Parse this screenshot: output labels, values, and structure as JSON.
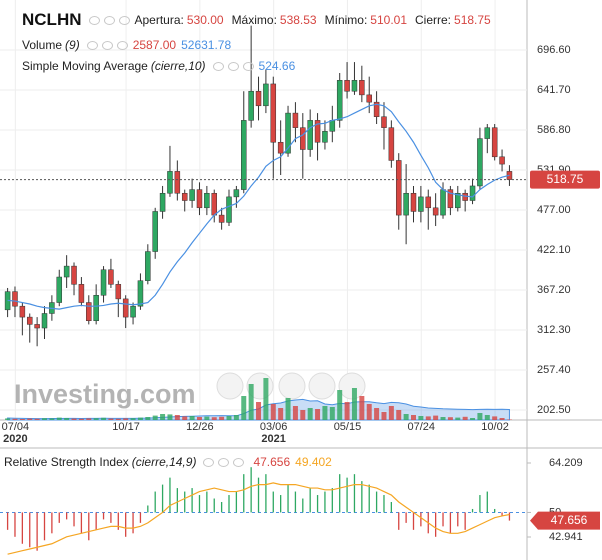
{
  "chart_data": [
    {
      "type": "candlestick",
      "title": "NCLHN",
      "ohlc_legend": [
        {
          "label": "Apertura:",
          "value": "530.00"
        },
        {
          "label": "Máximo:",
          "value": "538.53"
        },
        {
          "label": "Mínimo:",
          "value": "510.01"
        },
        {
          "label": "Cierre:",
          "value": "518.75"
        }
      ],
      "categories": [
        null,
        null,
        "07/04",
        null,
        null,
        null,
        null,
        null,
        null,
        null,
        null,
        null,
        null,
        null,
        null,
        null,
        null,
        "10/17",
        null,
        null,
        null,
        null,
        null,
        null,
        null,
        null,
        null,
        "12/26",
        null,
        null,
        null,
        null,
        null,
        null,
        null,
        null,
        null,
        "03/06",
        null,
        null,
        null,
        null,
        null,
        null,
        null,
        null,
        null,
        "05/15",
        null,
        null,
        null,
        null,
        null,
        null,
        null,
        null,
        null,
        "07/24",
        null,
        null,
        null,
        null,
        null,
        null,
        null,
        null,
        null,
        "10/02",
        null
      ],
      "x_sublabels": [
        null,
        null,
        "2020",
        null,
        null,
        null,
        null,
        null,
        null,
        null,
        null,
        null,
        null,
        null,
        null,
        null,
        null,
        null,
        null,
        null,
        null,
        null,
        null,
        null,
        null,
        null,
        null,
        null,
        null,
        null,
        null,
        null,
        null,
        null,
        null,
        null,
        null,
        "2021",
        null,
        null,
        null,
        null,
        null,
        null,
        null,
        null,
        null,
        null,
        null,
        null,
        null,
        null,
        null,
        null,
        null,
        null,
        null,
        null,
        null,
        null,
        null,
        null,
        null,
        null,
        null,
        null,
        null,
        null,
        null
      ],
      "open": [
        340,
        365,
        345,
        330,
        320,
        315,
        335,
        350,
        385,
        400,
        375,
        350,
        325,
        360,
        395,
        375,
        355,
        330,
        345,
        380,
        420,
        475,
        500,
        530,
        500,
        490,
        505,
        480,
        500,
        470,
        460,
        495,
        505,
        600,
        640,
        620,
        650,
        570,
        555,
        610,
        590,
        560,
        600,
        570,
        585,
        600,
        655,
        640,
        655,
        635,
        625,
        605,
        590,
        545,
        470,
        500,
        475,
        495,
        480,
        470,
        505,
        480,
        500,
        490,
        510,
        575,
        590,
        550,
        530
      ],
      "high": [
        370,
        372,
        350,
        335,
        330,
        345,
        360,
        395,
        415,
        405,
        385,
        360,
        375,
        400,
        410,
        380,
        360,
        350,
        390,
        430,
        480,
        510,
        565,
        545,
        505,
        520,
        515,
        510,
        505,
        480,
        505,
        510,
        640,
        730,
        660,
        670,
        660,
        600,
        620,
        625,
        610,
        615,
        610,
        600,
        620,
        665,
        680,
        680,
        675,
        660,
        640,
        625,
        600,
        555,
        540,
        510,
        510,
        505,
        500,
        515,
        510,
        510,
        505,
        520,
        590,
        595,
        595,
        560,
        538.53
      ],
      "low": [
        330,
        330,
        305,
        295,
        290,
        300,
        325,
        345,
        370,
        360,
        345,
        320,
        320,
        350,
        370,
        330,
        315,
        320,
        340,
        375,
        410,
        465,
        495,
        490,
        475,
        480,
        470,
        470,
        460,
        450,
        455,
        480,
        500,
        590,
        600,
        610,
        520,
        525,
        550,
        570,
        520,
        550,
        545,
        560,
        570,
        590,
        630,
        635,
        625,
        610,
        595,
        560,
        535,
        450,
        430,
        460,
        460,
        450,
        455,
        465,
        470,
        475,
        475,
        485,
        505,
        555,
        545,
        530,
        510.01
      ],
      "close": [
        365,
        345,
        330,
        320,
        315,
        335,
        350,
        385,
        400,
        375,
        350,
        325,
        360,
        395,
        375,
        355,
        330,
        345,
        380,
        420,
        475,
        500,
        530,
        500,
        490,
        505,
        480,
        500,
        470,
        460,
        495,
        505,
        600,
        640,
        620,
        650,
        570,
        555,
        610,
        590,
        560,
        600,
        570,
        585,
        600,
        655,
        640,
        655,
        635,
        625,
        605,
        590,
        545,
        470,
        500,
        475,
        495,
        480,
        470,
        505,
        480,
        500,
        490,
        510,
        575,
        590,
        550,
        540,
        518.75
      ],
      "last_label": "518.75",
      "up_color": "#2ea862",
      "down_color": "#d64541",
      "ylim": [
        188.8,
        765.2
      ],
      "yticks": [
        {
          "value": 202.5,
          "label": "202.50"
        },
        {
          "value": 257.4,
          "label": "257.40"
        },
        {
          "value": 312.3,
          "label": "312.30"
        },
        {
          "value": 367.2,
          "label": "367.20"
        },
        {
          "value": 422.1,
          "label": "422.10"
        },
        {
          "value": 477,
          "label": "477.00"
        },
        {
          "value": 531.9,
          "label": "531.90"
        },
        {
          "value": 586.8,
          "label": "586.80"
        },
        {
          "value": 641.7,
          "label": "641.70"
        },
        {
          "value": 696.6,
          "label": "696.60"
        }
      ],
      "grid": true,
      "sma": {
        "name": "Simple Moving Average",
        "params": "(cierre,10)",
        "color": "#4a90e2",
        "values": [
          353,
          352,
          350,
          348,
          345,
          343,
          342,
          341,
          343,
          345,
          346,
          345,
          345,
          346,
          348,
          349,
          348,
          347,
          348,
          350,
          360,
          375,
          392,
          406,
          418,
          432,
          445,
          458,
          470,
          478,
          482,
          486,
          496,
          510,
          522,
          537,
          545,
          550,
          562,
          575,
          580,
          590,
          595,
          596,
          600,
          602,
          605,
          610,
          615,
          620,
          622,
          620,
          612,
          598,
          585,
          570,
          552,
          535,
          515,
          505,
          500,
          498,
          496,
          495,
          505,
          512,
          518,
          522,
          524.66
        ],
        "value_label": "524.66"
      },
      "volume": {
        "name": "Volume",
        "params": "(9)",
        "values": [
          8000,
          6000,
          5000,
          7000,
          6000,
          9000,
          8000,
          12000,
          10000,
          7000,
          6000,
          8000,
          9000,
          11000,
          7000,
          6000,
          8000,
          9000,
          12000,
          15000,
          22000,
          30000,
          28000,
          25000,
          18000,
          20000,
          15000,
          17000,
          14000,
          16000,
          20000,
          25000,
          120000,
          180000,
          90000,
          210000,
          80000,
          60000,
          110000,
          70000,
          50000,
          60000,
          55000,
          70000,
          65000,
          150000,
          90000,
          160000,
          120000,
          80000,
          60000,
          40000,
          70000,
          50000,
          30000,
          25000,
          20000,
          18000,
          22000,
          15000,
          14000,
          12000,
          16000,
          10000,
          35000,
          25000,
          18000,
          10000,
          2587
        ],
        "value_label": "2587.00",
        "sma_values": [
          10000,
          9000,
          8000,
          7500,
          7000,
          7000,
          7200,
          7500,
          8000,
          8000,
          7800,
          7900,
          8200,
          8600,
          8400,
          8100,
          8200,
          8400,
          9000,
          9600,
          11000,
          13000,
          15000,
          17000,
          18000,
          19000,
          20000,
          21000,
          21000,
          22000,
          21000,
          21000,
          32000,
          49000,
          55000,
          75000,
          81000,
          85000,
          95000,
          100000,
          103000,
          95000,
          96000,
          80000,
          76000,
          83000,
          81000,
          90000,
          91000,
          91000,
          86000,
          82000,
          88000,
          86000,
          80000,
          69000,
          65000,
          60000,
          58000,
          56000,
          55000,
          54000,
          53000,
          52000,
          53000,
          54000,
          53000,
          53500,
          52631.78
        ],
        "sma_label": "52631.78",
        "sma_color": "#4a90e2"
      },
      "watermark": "Investing.com"
    },
    {
      "type": "rsi",
      "name": "Relative Strength Index",
      "params": "(cierre,14,9)",
      "values": [
        45,
        43,
        41,
        40,
        39,
        42,
        44,
        47,
        48,
        46,
        44,
        42,
        45,
        48,
        47,
        45,
        43,
        44,
        47,
        52,
        56,
        58,
        60,
        57,
        56,
        57,
        55,
        56,
        54,
        53,
        55,
        56,
        61,
        63,
        60,
        61,
        56,
        55,
        58,
        56,
        54,
        57,
        55,
        56,
        57,
        61,
        60,
        61,
        59,
        58,
        56,
        55,
        53,
        45,
        47,
        45,
        46,
        44,
        43,
        46,
        44,
        46,
        45,
        51,
        55,
        56,
        51,
        49,
        47.656
      ],
      "value_label": "47.656",
      "signal": [
        38,
        38.5,
        39,
        39.5,
        40,
        40.5,
        41,
        42,
        43,
        43.5,
        44,
        44.5,
        45,
        45.5,
        46,
        46,
        45.5,
        45.5,
        46,
        47,
        48.5,
        50,
        52,
        53,
        54,
        55,
        56,
        56.5,
        57,
        56.5,
        56,
        56,
        56.5,
        57.5,
        58,
        58,
        58.5,
        58,
        58,
        58,
        57.5,
        57,
        57,
        56.5,
        56.5,
        57,
        57.5,
        58,
        58,
        57.5,
        57,
        56,
        55,
        53,
        51.5,
        50,
        48.5,
        47,
        45.5,
        44.5,
        44,
        44,
        44.5,
        45.5,
        46.5,
        47.5,
        48.5,
        49,
        49.402
      ],
      "signal_label": "49.402",
      "up_color": "#2ea862",
      "down_color": "#d64541",
      "signal_color": "#f5a623",
      "mid_color": "#4a90e2",
      "ylim": [
        36.91,
        67.94
      ],
      "yticks": [
        42.941,
        50,
        64.209
      ]
    }
  ]
}
